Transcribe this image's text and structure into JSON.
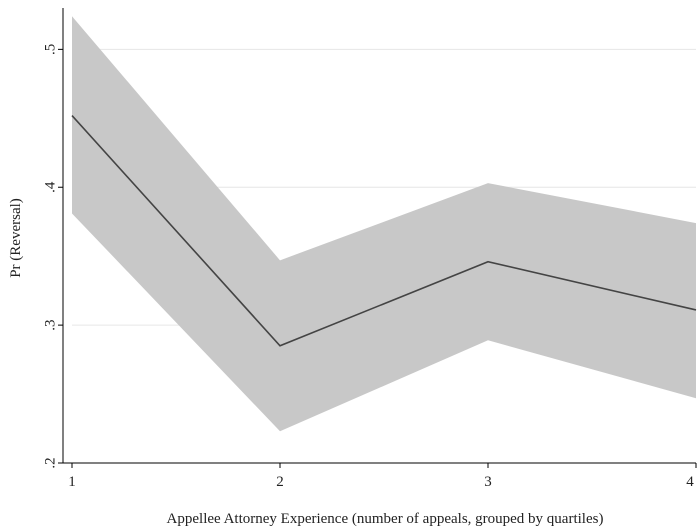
{
  "chart_data": {
    "type": "line",
    "title": "",
    "xlabel": "Appellee Attorney Experience (number of appeals, grouped by quartiles)",
    "ylabel": "Pr (Reversal)",
    "x": [
      1,
      2,
      3,
      4
    ],
    "xlim": [
      1,
      4
    ],
    "ylim": [
      0.2,
      0.53
    ],
    "xticks": [
      1,
      2,
      3,
      4
    ],
    "xtick_labels": [
      "1",
      "2",
      "3",
      "4"
    ],
    "yticks": [
      0.2,
      0.3,
      0.4,
      0.5
    ],
    "ytick_labels": [
      ".2",
      ".3",
      ".4",
      ".5"
    ],
    "grid": "horizontal",
    "legend": "none",
    "series": [
      {
        "values": [
          0.452,
          0.285,
          0.346,
          0.311
        ],
        "ci_lower": [
          0.381,
          0.223,
          0.289,
          0.247
        ],
        "ci_upper": [
          0.524,
          0.347,
          0.403,
          0.374
        ]
      }
    ],
    "colors": {
      "line": "#444444",
      "band": "#c8c8c8",
      "grid": "#e6e6e6",
      "axis": "#000000"
    }
  }
}
